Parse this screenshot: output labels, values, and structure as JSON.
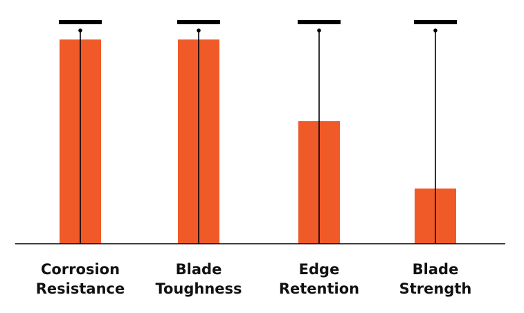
{
  "chart_data": {
    "type": "bar",
    "title": "",
    "xlabel": "",
    "ylabel": "",
    "ylim": [
      0,
      10
    ],
    "grid": false,
    "categories": [
      [
        "Corrosion",
        "Resistance"
      ],
      [
        "Blade",
        "Toughness"
      ],
      [
        "Edge",
        "Retention"
      ],
      [
        "Blade",
        "Strength"
      ]
    ],
    "values": [
      10,
      10,
      6,
      2.7
    ],
    "max_marker": 10,
    "colors": {
      "bar": "#f05a28",
      "indicator": "#000000",
      "axis": "#000000"
    }
  }
}
